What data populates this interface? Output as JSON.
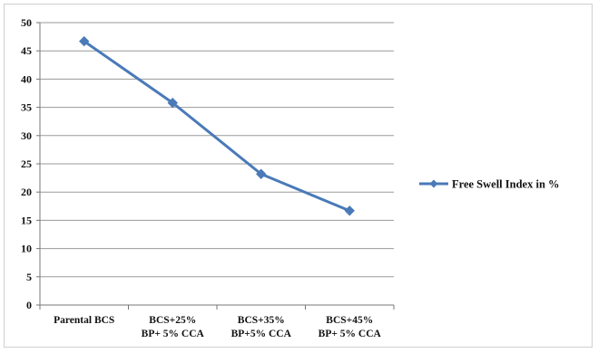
{
  "chart_data": {
    "type": "line",
    "categories": [
      [
        "Parental BCS"
      ],
      [
        "BCS+25%",
        "BP+ 5% CCA"
      ],
      [
        "BCS+35%",
        "BP+5% CCA"
      ],
      [
        "BCS+45%",
        "BP+ 5% CCA"
      ]
    ],
    "series": [
      {
        "name": "Free Swell Index in %",
        "values": [
          46.7,
          35.8,
          23.2,
          16.7
        ],
        "color": "#4a7ab8"
      }
    ],
    "ylim": [
      0,
      50
    ],
    "yticks": [
      0,
      5,
      10,
      15,
      20,
      25,
      30,
      35,
      40,
      45,
      50
    ],
    "grid": true,
    "legend": "right",
    "title": "",
    "xlabel": "",
    "ylabel": ""
  }
}
